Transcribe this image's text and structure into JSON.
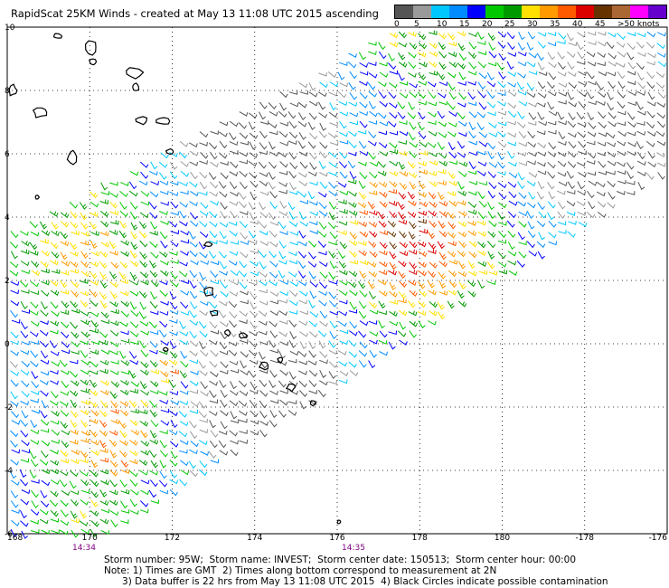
{
  "header": {
    "title": "RapidScat 25KM Winds - created at May 13 11:08 UTC 2015 ascending"
  },
  "legend": {
    "colors": [
      "#555555",
      "#9a9a9a",
      "#00c8ff",
      "#008cff",
      "#0000ff",
      "#00c800",
      "#009a00",
      "#ffe000",
      "#ff9a00",
      "#ff5a00",
      "#dd0000",
      "#663300",
      "#aa6633",
      "#ff00ff",
      "#6600cc"
    ],
    "labels": [
      "0",
      "5",
      "10",
      "15",
      "20",
      "25",
      "30",
      "35",
      "40",
      "45",
      ">50 knots"
    ]
  },
  "map": {
    "x_labels": [
      "168",
      "170",
      "172",
      "174",
      "176",
      "178",
      "180",
      "-178",
      "-176"
    ],
    "y_labels": [
      "-6",
      "-4",
      "-2",
      "0",
      "2",
      "4",
      "6",
      "8",
      "10"
    ],
    "x_range": [
      168,
      184
    ],
    "y_range": [
      -6,
      10
    ]
  },
  "footer": {
    "time_left": "14:34",
    "time_right": "14:35",
    "line1": "Storm number: 95W;  Storm name: INVEST;  Storm center date: 150513;  Storm center hour: 00:00",
    "line2": "Note: 1) Times are GMT  2) Times along bottom correspond to measurement at 2N",
    "line3": "      3) Data buffer is 22 hrs from May 13 11:08 UTC 2015  4) Black Circles indicate possible contamination"
  }
}
